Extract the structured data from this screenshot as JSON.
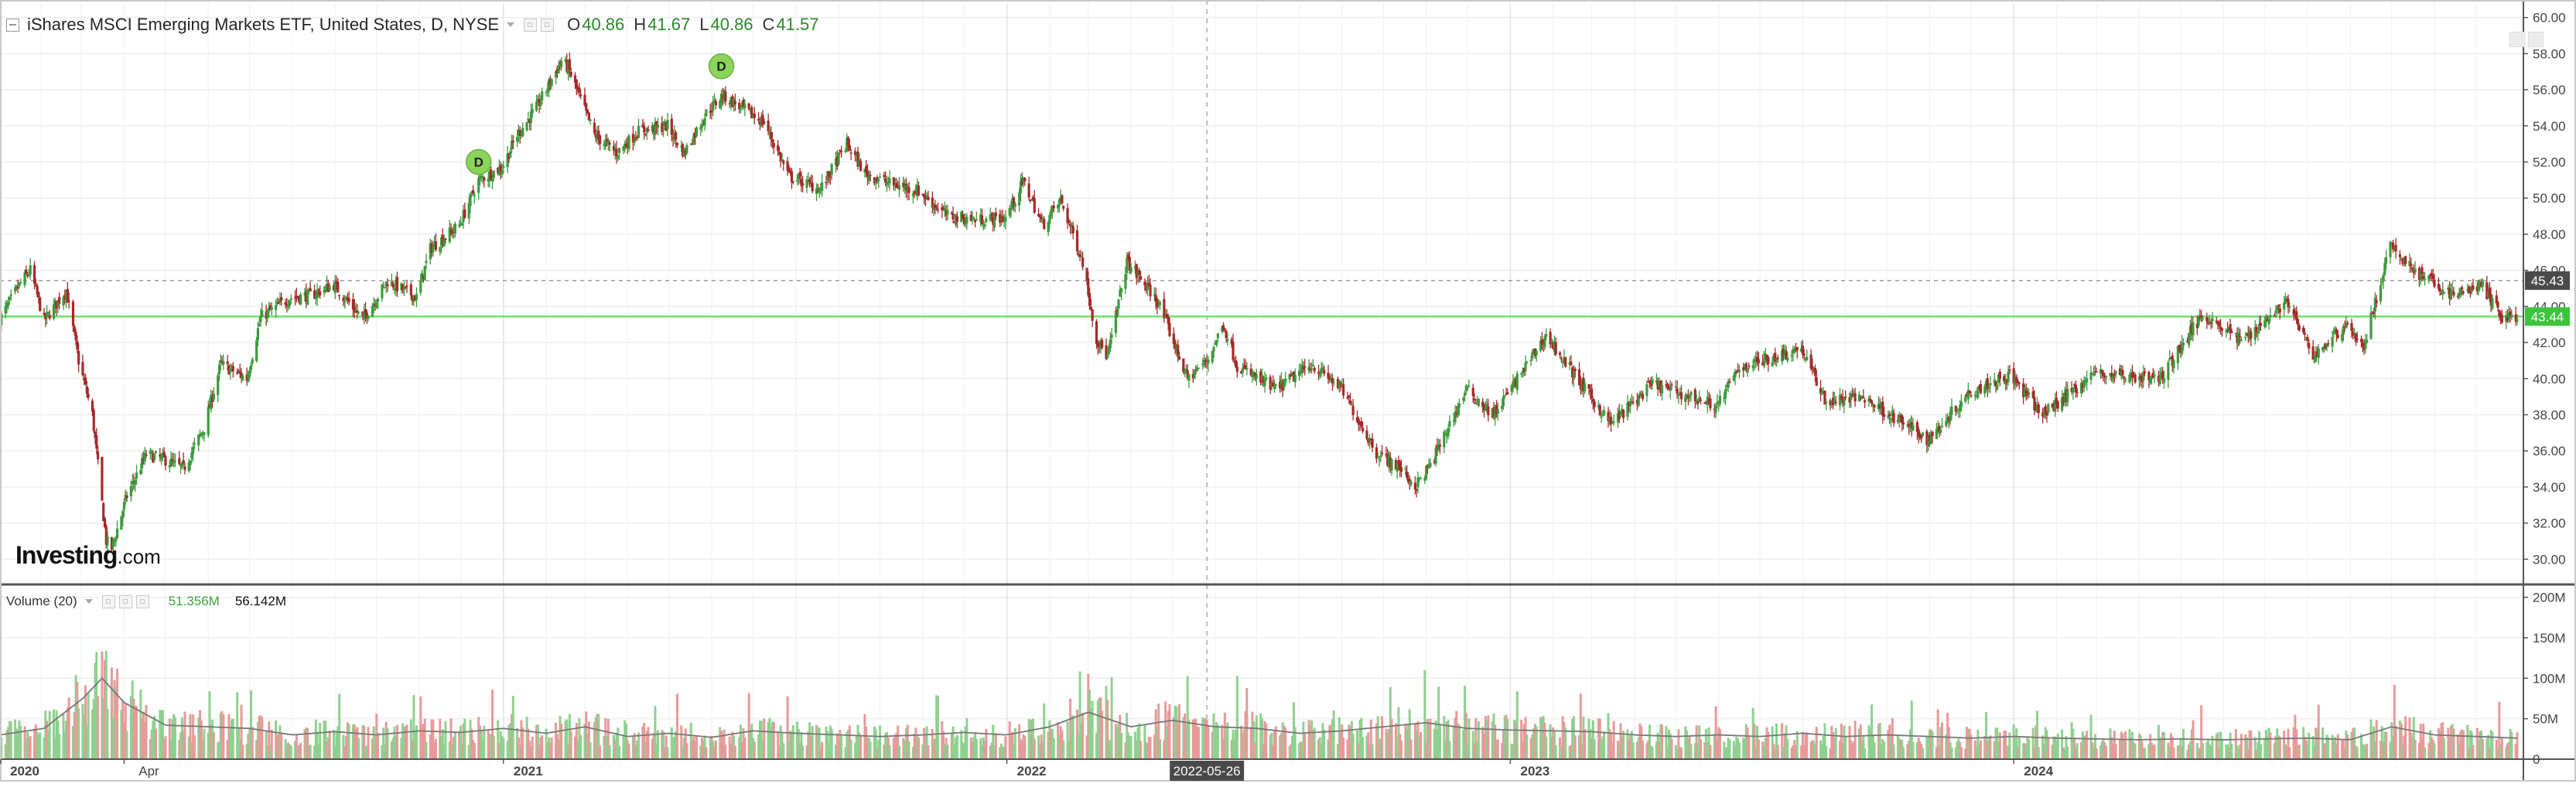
{
  "legend": {
    "symbol": "iShares MSCI Emerging Markets ETF, United States, D, NYSE",
    "ohlc": [
      {
        "key": "O",
        "value": "40.86"
      },
      {
        "key": "H",
        "value": "41.67"
      },
      {
        "key": "L",
        "value": "40.86"
      },
      {
        "key": "C",
        "value": "41.57"
      }
    ]
  },
  "volume_legend": {
    "label": "Volume (20)",
    "value_1": "51.356M",
    "value_2": "56.142M"
  },
  "brand": {
    "name": "Investing",
    "suffix": ".com"
  },
  "crosshair": {
    "date": "2022-05-26"
  },
  "colors": {
    "up": "#3d9a3d",
    "down": "#a52a2a",
    "volume_up": "#8fd18f",
    "volume_down": "#e79a9a",
    "volume_ma": "#777777",
    "highlight_line": "#6fe06f",
    "price_tag_dark": "#4a4a4a",
    "price_tag_green": "#3cc43c",
    "dividend_marker": "#8bd45a"
  },
  "chart_data": {
    "type": "candlestick",
    "title": "iShares MSCI Emerging Markets ETF, United States, D, NYSE",
    "x_axis": {
      "start": "2020-01-02",
      "end": "2024-12-31",
      "tick_labels": [
        {
          "date": "2020-01-01",
          "label": "2020"
        },
        {
          "date": "2020-04-01",
          "label": "Apr"
        },
        {
          "date": "2021-01-01",
          "label": "2021"
        },
        {
          "date": "2022-01-01",
          "label": "2022"
        },
        {
          "date": "2023-01-01",
          "label": "2023"
        },
        {
          "date": "2024-01-01",
          "label": "2024"
        }
      ]
    },
    "price_axis": {
      "range": [
        28.6,
        60.8
      ],
      "ticks": [
        30,
        32,
        34,
        36,
        38,
        40,
        42,
        44,
        46,
        48,
        50,
        52,
        54,
        56,
        58,
        60
      ],
      "tick_labels": [
        "30.00",
        "32.00",
        "34.00",
        "36.00",
        "38.00",
        "40.00",
        "42.00",
        "44.00",
        "46.00",
        "48.00",
        "50.00",
        "52.00",
        "54.00",
        "56.00",
        "58.00",
        "60.00"
      ],
      "position": "right"
    },
    "volume_axis": {
      "range": [
        0,
        212
      ],
      "unit": "M",
      "ticks": [
        0,
        50,
        100,
        150,
        200
      ],
      "tick_labels": [
        "0",
        "50M",
        "100M",
        "150M",
        "200M"
      ]
    },
    "price_levels": [
      {
        "value": 45.43,
        "label": "45.43",
        "style": "dashed",
        "tag": "dark"
      },
      {
        "value": 43.44,
        "label": "43.44",
        "style": "solid",
        "tag": "green"
      }
    ],
    "dividend_markers": [
      {
        "date": "2020-12-14",
        "price": 52.0,
        "label": "D"
      },
      {
        "date": "2021-06-08",
        "price": 57.3,
        "label": "D"
      }
    ],
    "price_series": [
      [
        "2020-01-02",
        43.3
      ],
      [
        "2020-01-17",
        45.3
      ],
      [
        "2020-01-24",
        46.0
      ],
      [
        "2020-02-03",
        43.2
      ],
      [
        "2020-02-19",
        44.9
      ],
      [
        "2020-02-28",
        41.0
      ],
      [
        "2020-03-09",
        38.0
      ],
      [
        "2020-03-19",
        31.0
      ],
      [
        "2020-03-23",
        30.6
      ],
      [
        "2020-04-03",
        33.5
      ],
      [
        "2020-04-17",
        35.8
      ],
      [
        "2020-05-01",
        35.5
      ],
      [
        "2020-05-14",
        35.0
      ],
      [
        "2020-05-29",
        37.3
      ],
      [
        "2020-06-10",
        40.8
      ],
      [
        "2020-06-29",
        40.0
      ],
      [
        "2020-07-09",
        43.4
      ],
      [
        "2020-07-31",
        44.5
      ],
      [
        "2020-08-14",
        44.6
      ],
      [
        "2020-08-31",
        45.2
      ],
      [
        "2020-09-21",
        43.3
      ],
      [
        "2020-10-09",
        45.4
      ],
      [
        "2020-10-30",
        44.5
      ],
      [
        "2020-11-09",
        47.2
      ],
      [
        "2020-11-30",
        48.5
      ],
      [
        "2020-12-14",
        51.0
      ],
      [
        "2020-12-31",
        51.7
      ],
      [
        "2021-01-11",
        53.5
      ],
      [
        "2021-01-25",
        55.0
      ],
      [
        "2021-02-12",
        57.6
      ],
      [
        "2021-02-17",
        57.2
      ],
      [
        "2021-03-08",
        53.5
      ],
      [
        "2021-03-24",
        52.5
      ],
      [
        "2021-04-09",
        53.7
      ],
      [
        "2021-04-30",
        54.0
      ],
      [
        "2021-05-12",
        52.5
      ],
      [
        "2021-05-28",
        54.7
      ],
      [
        "2021-06-09",
        55.7
      ],
      [
        "2021-06-30",
        54.6
      ],
      [
        "2021-07-09",
        54.2
      ],
      [
        "2021-07-27",
        51.2
      ],
      [
        "2021-08-19",
        50.5
      ],
      [
        "2021-09-07",
        53.0
      ],
      [
        "2021-09-20",
        51.4
      ],
      [
        "2021-10-08",
        50.8
      ],
      [
        "2021-10-29",
        50.4
      ],
      [
        "2021-11-19",
        49.0
      ],
      [
        "2021-12-10",
        48.8
      ],
      [
        "2021-12-31",
        48.9
      ],
      [
        "2022-01-13",
        50.9
      ],
      [
        "2022-01-27",
        48.5
      ],
      [
        "2022-02-09",
        49.9
      ],
      [
        "2022-02-25",
        46.5
      ],
      [
        "2022-03-07",
        42.2
      ],
      [
        "2022-03-15",
        41.2
      ],
      [
        "2022-03-29",
        46.5
      ],
      [
        "2022-04-21",
        44.2
      ],
      [
        "2022-05-12",
        40.0
      ],
      [
        "2022-05-26",
        41.0
      ],
      [
        "2022-06-07",
        43.0
      ],
      [
        "2022-06-17",
        40.7
      ],
      [
        "2022-07-15",
        39.4
      ],
      [
        "2022-08-10",
        40.8
      ],
      [
        "2022-08-31",
        39.5
      ],
      [
        "2022-09-26",
        35.9
      ],
      [
        "2022-10-14",
        35.0
      ],
      [
        "2022-10-24",
        34.0
      ],
      [
        "2022-11-04",
        35.2
      ],
      [
        "2022-11-30",
        39.4
      ],
      [
        "2022-12-20",
        38.0
      ],
      [
        "2023-01-27",
        42.4
      ],
      [
        "2023-02-23",
        39.5
      ],
      [
        "2023-03-15",
        37.5
      ],
      [
        "2023-04-14",
        39.7
      ],
      [
        "2023-05-31",
        38.5
      ],
      [
        "2023-06-16",
        40.6
      ],
      [
        "2023-07-31",
        41.7
      ],
      [
        "2023-08-18",
        38.7
      ],
      [
        "2023-09-14",
        39.0
      ],
      [
        "2023-10-23",
        37.0
      ],
      [
        "2023-10-31",
        36.6
      ],
      [
        "2023-11-30",
        39.3
      ],
      [
        "2023-12-29",
        40.2
      ],
      [
        "2024-01-22",
        38.0
      ],
      [
        "2024-02-28",
        40.3
      ],
      [
        "2024-04-16",
        40.0
      ],
      [
        "2024-05-17",
        43.6
      ],
      [
        "2024-06-14",
        42.1
      ],
      [
        "2024-07-17",
        44.3
      ],
      [
        "2024-08-05",
        41.2
      ],
      [
        "2024-08-30",
        43.1
      ],
      [
        "2024-09-10",
        41.6
      ],
      [
        "2024-09-30",
        47.3
      ],
      [
        "2024-10-21",
        45.8
      ],
      [
        "2024-11-15",
        44.6
      ],
      [
        "2024-12-05",
        45.2
      ],
      [
        "2024-12-20",
        43.4
      ],
      [
        "2024-12-31",
        43.44
      ]
    ],
    "volume_series": [
      [
        "2020-01-02",
        30
      ],
      [
        "2020-02-03",
        38
      ],
      [
        "2020-03-02",
        75
      ],
      [
        "2020-03-16",
        100
      ],
      [
        "2020-04-01",
        70
      ],
      [
        "2020-05-01",
        42
      ],
      [
        "2020-06-01",
        40
      ],
      [
        "2020-07-01",
        38
      ],
      [
        "2020-08-01",
        30
      ],
      [
        "2020-09-01",
        34
      ],
      [
        "2020-10-01",
        30
      ],
      [
        "2020-11-01",
        35
      ],
      [
        "2020-12-01",
        33
      ],
      [
        "2021-01-01",
        38
      ],
      [
        "2021-02-01",
        32
      ],
      [
        "2021-03-01",
        40
      ],
      [
        "2021-04-01",
        28
      ],
      [
        "2021-05-01",
        32
      ],
      [
        "2021-06-01",
        27
      ],
      [
        "2021-07-01",
        35
      ],
      [
        "2021-08-01",
        32
      ],
      [
        "2021-09-01",
        30
      ],
      [
        "2021-10-01",
        28
      ],
      [
        "2021-11-01",
        30
      ],
      [
        "2021-12-01",
        33
      ],
      [
        "2022-01-01",
        30
      ],
      [
        "2022-02-01",
        40
      ],
      [
        "2022-03-01",
        58
      ],
      [
        "2022-04-01",
        40
      ],
      [
        "2022-05-01",
        48
      ],
      [
        "2022-06-01",
        40
      ],
      [
        "2022-07-01",
        38
      ],
      [
        "2022-08-01",
        32
      ],
      [
        "2022-09-01",
        35
      ],
      [
        "2022-10-01",
        40
      ],
      [
        "2022-11-01",
        45
      ],
      [
        "2022-12-01",
        38
      ],
      [
        "2023-01-01",
        36
      ],
      [
        "2023-02-01",
        35
      ],
      [
        "2023-03-01",
        34
      ],
      [
        "2023-04-01",
        30
      ],
      [
        "2023-05-01",
        28
      ],
      [
        "2023-06-01",
        30
      ],
      [
        "2023-07-01",
        28
      ],
      [
        "2023-08-01",
        32
      ],
      [
        "2023-09-01",
        28
      ],
      [
        "2023-10-01",
        30
      ],
      [
        "2023-11-01",
        28
      ],
      [
        "2023-12-01",
        26
      ],
      [
        "2024-01-01",
        28
      ],
      [
        "2024-02-01",
        26
      ],
      [
        "2024-03-01",
        25
      ],
      [
        "2024-04-01",
        24
      ],
      [
        "2024-05-01",
        25
      ],
      [
        "2024-06-01",
        24
      ],
      [
        "2024-07-01",
        25
      ],
      [
        "2024-08-01",
        26
      ],
      [
        "2024-09-01",
        24
      ],
      [
        "2024-10-01",
        40
      ],
      [
        "2024-11-01",
        30
      ],
      [
        "2024-12-01",
        28
      ],
      [
        "2024-12-31",
        26
      ]
    ]
  }
}
